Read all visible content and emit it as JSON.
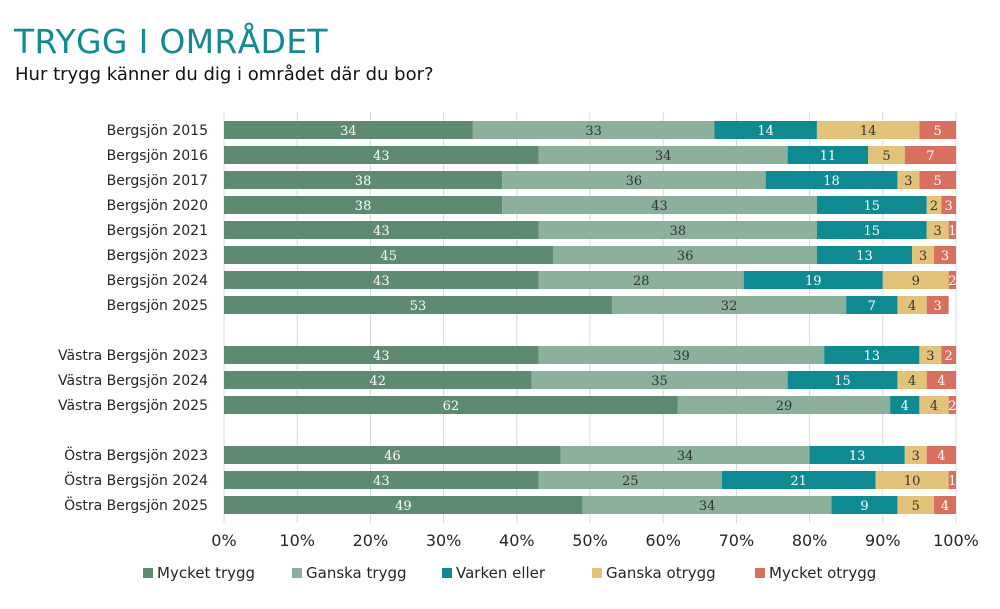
{
  "header": {
    "title": "TRYGG I OMRÅDET",
    "subtitle": "Hur trygg känner du dig i området där du bor?"
  },
  "chart_data": {
    "type": "bar",
    "orientation": "horizontal",
    "stacked": "100%",
    "title": "TRYGG I OMRÅDET",
    "subtitle": "Hur trygg känner du dig i området där du bor?",
    "xlabel": "",
    "ylabel": "",
    "xlim": [
      0,
      100
    ],
    "x_ticks": [
      "0%",
      "10%",
      "20%",
      "30%",
      "40%",
      "50%",
      "60%",
      "70%",
      "80%",
      "90%",
      "100%"
    ],
    "grid": "vertical",
    "legend_position": "bottom",
    "categories": [
      "Bergsjön 2015",
      "Bergsjön 2016",
      "Bergsjön 2017",
      "Bergsjön 2020",
      "Bergsjön 2021",
      "Bergsjön 2023",
      "Bergsjön 2024",
      "Bergsjön 2025",
      "Västra Bergsjön 2023",
      "Västra Bergsjön 2024",
      "Västra Bergsjön 2025",
      "Östra Bergsjön 2023",
      "Östra Bergsjön 2024",
      "Östra Bergsjön 2025"
    ],
    "groups": [
      [
        0,
        1,
        2,
        3,
        4,
        5,
        6,
        7
      ],
      [
        8,
        9,
        10
      ],
      [
        11,
        12,
        13
      ]
    ],
    "series": [
      {
        "name": "Mycket trygg",
        "color": "#5e8a72",
        "label_color": "#ffffff",
        "values": [
          34,
          43,
          38,
          38,
          43,
          45,
          43,
          53,
          43,
          42,
          62,
          46,
          43,
          49
        ]
      },
      {
        "name": "Ganska trygg",
        "color": "#8cb09c",
        "label_color": "#333333",
        "values": [
          33,
          34,
          36,
          43,
          38,
          36,
          28,
          32,
          39,
          35,
          29,
          34,
          25,
          34
        ]
      },
      {
        "name": "Varken eller",
        "color": "#0f8a93",
        "label_color": "#ffffff",
        "values": [
          14,
          11,
          18,
          15,
          15,
          13,
          19,
          7,
          13,
          15,
          4,
          13,
          21,
          9
        ]
      },
      {
        "name": "Ganska otrygg",
        "color": "#e3c27a",
        "label_color": "#333333",
        "values": [
          14,
          5,
          3,
          2,
          3,
          3,
          9,
          4,
          3,
          4,
          4,
          3,
          10,
          5
        ]
      },
      {
        "name": "Mycket otrygg",
        "color": "#d9705f",
        "label_color": "#ffffff",
        "values": [
          5,
          7,
          5,
          3,
          1,
          3,
          2,
          3,
          2,
          4,
          2,
          4,
          1,
          4
        ]
      }
    ]
  }
}
